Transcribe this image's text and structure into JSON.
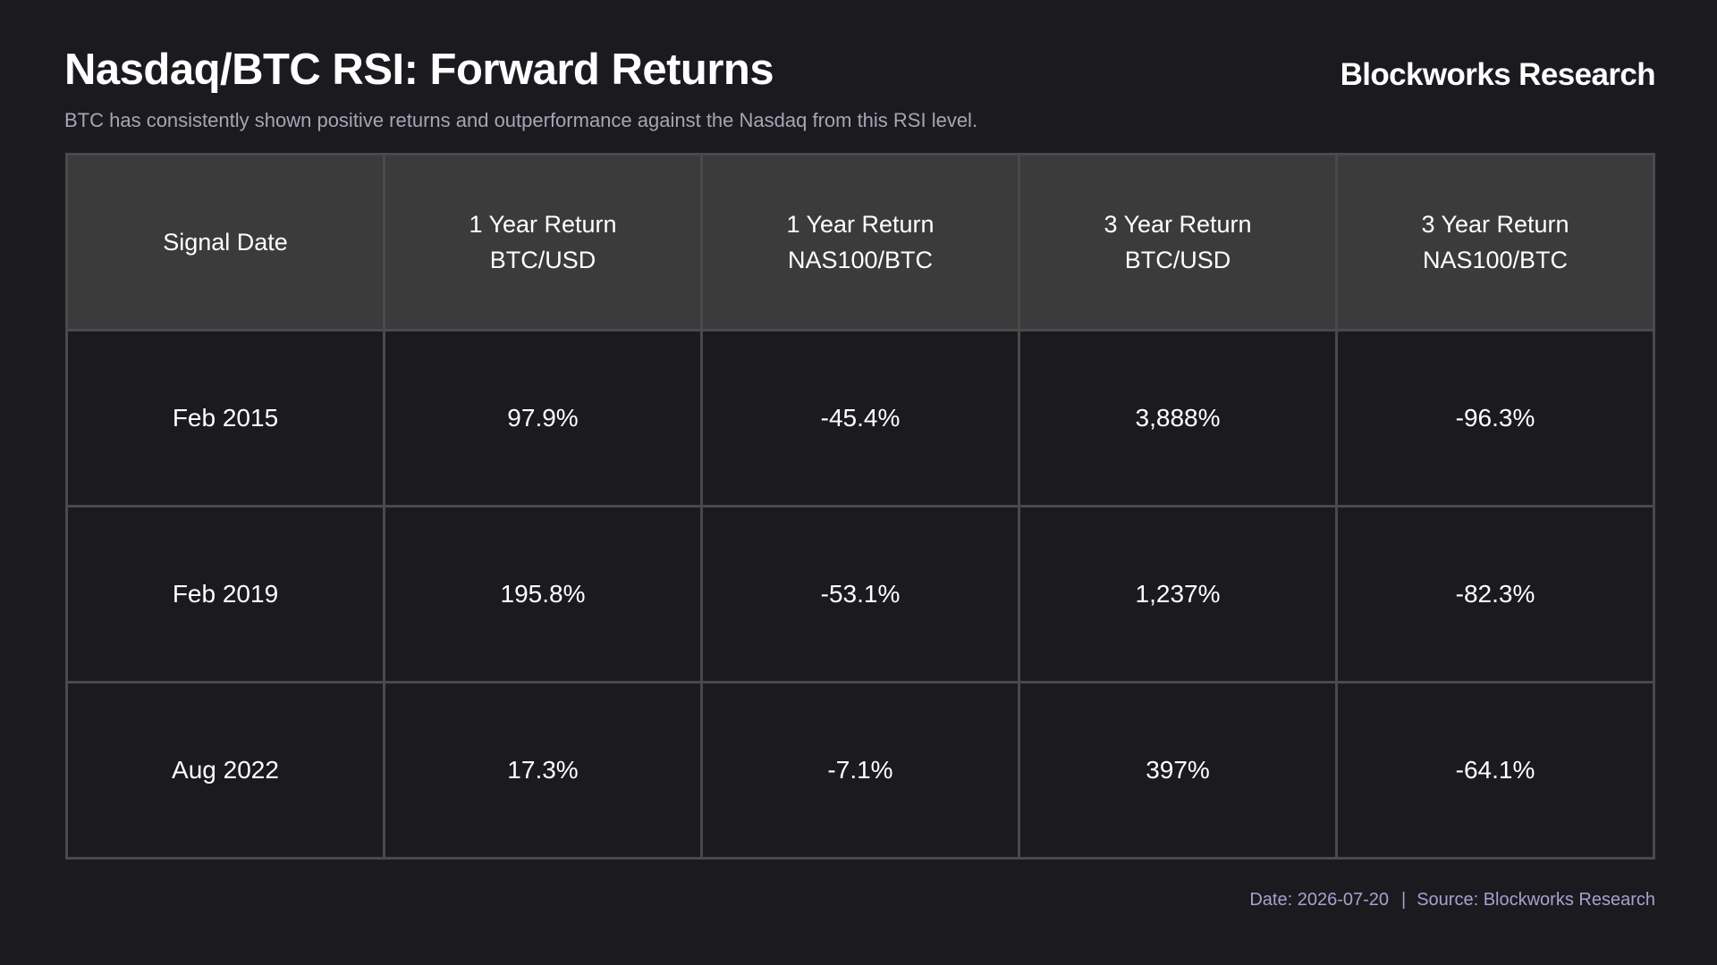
{
  "header": {
    "title": "Nasdaq/BTC RSI: Forward Returns",
    "subtitle": "BTC has consistently shown positive returns and outperformance against the Nasdaq from this RSI level.",
    "brand": "Blockworks Research"
  },
  "chart_data": {
    "type": "table",
    "columns": [
      {
        "line1": "Signal Date",
        "line2": ""
      },
      {
        "line1": "1 Year Return",
        "line2": "BTC/USD"
      },
      {
        "line1": "1 Year Return",
        "line2": "NAS100/BTC"
      },
      {
        "line1": "3 Year Return",
        "line2": "BTC/USD"
      },
      {
        "line1": "3 Year Return",
        "line2": "NAS100/BTC"
      }
    ],
    "rows": [
      [
        "Feb 2015",
        "97.9%",
        "-45.4%",
        "3,888%",
        "-96.3%"
      ],
      [
        "Feb 2019",
        "195.8%",
        "-53.1%",
        "1,237%",
        "-82.3%"
      ],
      [
        "Aug 2022",
        "17.3%",
        "-7.1%",
        "397%",
        "-64.1%"
      ]
    ]
  },
  "footer": {
    "date": "Date: 2026-07-20",
    "separator": "|",
    "source": "Source: Blockworks Research"
  },
  "colors": {
    "background": "#1b1b1f",
    "header_fill": "#3b3b3c",
    "grid": "#4a4a4d",
    "subtitle": "#a8a4b8",
    "footer": "#a8a0cf"
  }
}
